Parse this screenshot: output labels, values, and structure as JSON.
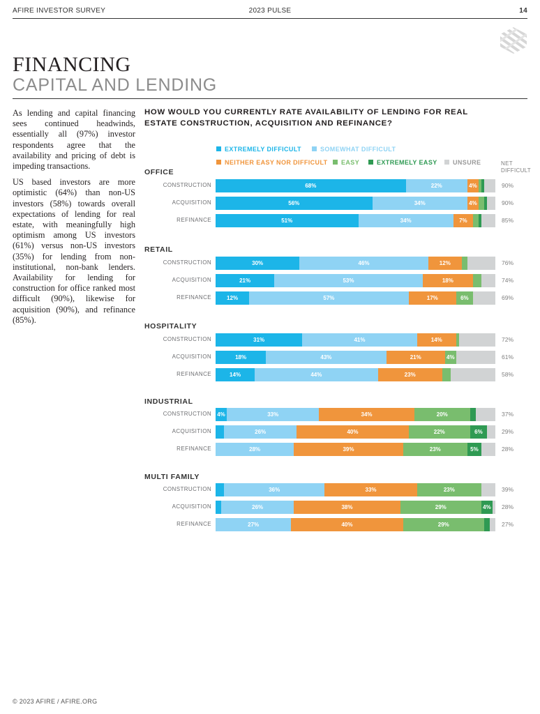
{
  "header": {
    "left": "AFIRE INVESTOR SURVEY",
    "center": "2023 PULSE",
    "page_number": "14"
  },
  "title": {
    "line1": "FINANCING",
    "line2": "CAPITAL AND LENDING"
  },
  "body": {
    "paragraph1": "As lending and capital financing sees continued headwinds, essentially all (97%) investor respondents agree that the availability and pricing of debt is impeding transactions.",
    "paragraph2": "US based investors are more optimistic (64%) than non-US investors (58%) towards overall expectations of lending for real estate, with meaningfully high optimism among US investors (61%) versus non-US investors (35%) for lending from non-institutional, non-bank lenders. Availability for lending for construction for office ranked most difficult (90%), likewise for acquisition (90%), and refinance (85%)."
  },
  "footer": {
    "text": "© 2023 AFIRE / AFIRE.ORG"
  },
  "chart_data": {
    "type": "bar",
    "orientation": "horizontal-stacked-100",
    "title": "HOW WOULD YOU CURRENTLY RATE AVAILABILITY OF LENDING FOR REAL ESTATE CONSTRUCTION, ACQUISITION AND REFINANCE?",
    "net_header": [
      "NET",
      "DIFFICULT"
    ],
    "series": [
      {
        "name": "EXTREMELY DIFFICULT",
        "color": "#1cb5e8"
      },
      {
        "name": "SOMEWHAT DIFFICULT",
        "color": "#8fd3f4"
      },
      {
        "name": "NEITHER EASY NOR DIFFICULT",
        "color": "#f0953c"
      },
      {
        "name": "EASY",
        "color": "#79bd6e"
      },
      {
        "name": "EXTREMELY EASY",
        "color": "#2f9a53"
      },
      {
        "name": "UNSURE",
        "color": "#d1d3d4"
      }
    ],
    "groups": [
      {
        "name": "OFFICE",
        "rows": [
          {
            "label": "CONSTRUCTION",
            "values": [
              68,
              22,
              4,
              1,
              1,
              4
            ],
            "net": "90%"
          },
          {
            "label": "ACQUISITION",
            "values": [
              56,
              34,
              4,
              2,
              1,
              3
            ],
            "net": "90%"
          },
          {
            "label": "REFINANCE",
            "values": [
              51,
              34,
              7,
              2,
              1,
              5
            ],
            "net": "85%"
          }
        ]
      },
      {
        "name": "RETAIL",
        "rows": [
          {
            "label": "CONSTRUCTION",
            "values": [
              30,
              46,
              12,
              2,
              0,
              10
            ],
            "net": "76%"
          },
          {
            "label": "ACQUISITION",
            "values": [
              21,
              53,
              18,
              3,
              0,
              5
            ],
            "net": "74%"
          },
          {
            "label": "REFINANCE",
            "values": [
              12,
              57,
              17,
              6,
              0,
              8
            ],
            "net": "69%"
          }
        ]
      },
      {
        "name": "HOSPITALITY",
        "rows": [
          {
            "label": "CONSTRUCTION",
            "values": [
              31,
              41,
              14,
              1,
              0,
              13
            ],
            "net": "72%"
          },
          {
            "label": "ACQUISITION",
            "values": [
              18,
              43,
              21,
              4,
              0,
              14
            ],
            "net": "61%"
          },
          {
            "label": "REFINANCE",
            "values": [
              14,
              44,
              23,
              3,
              0,
              16
            ],
            "net": "58%"
          }
        ]
      },
      {
        "name": "INDUSTRIAL",
        "rows": [
          {
            "label": "CONSTRUCTION",
            "values": [
              4,
              33,
              34,
              20,
              2,
              7
            ],
            "net": "37%"
          },
          {
            "label": "ACQUISITION",
            "values": [
              3,
              26,
              40,
              22,
              6,
              3
            ],
            "net": "29%"
          },
          {
            "label": "REFINANCE",
            "values": [
              0,
              28,
              39,
              23,
              5,
              5
            ],
            "net": "28%"
          }
        ]
      },
      {
        "name": "MULTI FAMILY",
        "rows": [
          {
            "label": "CONSTRUCTION",
            "values": [
              3,
              36,
              33,
              23,
              0,
              5
            ],
            "net": "39%"
          },
          {
            "label": "ACQUISITION",
            "values": [
              2,
              26,
              38,
              29,
              4,
              1
            ],
            "net": "28%"
          },
          {
            "label": "REFINANCE",
            "values": [
              0,
              27,
              40,
              29,
              2,
              2
            ],
            "net": "27%"
          }
        ]
      }
    ]
  }
}
